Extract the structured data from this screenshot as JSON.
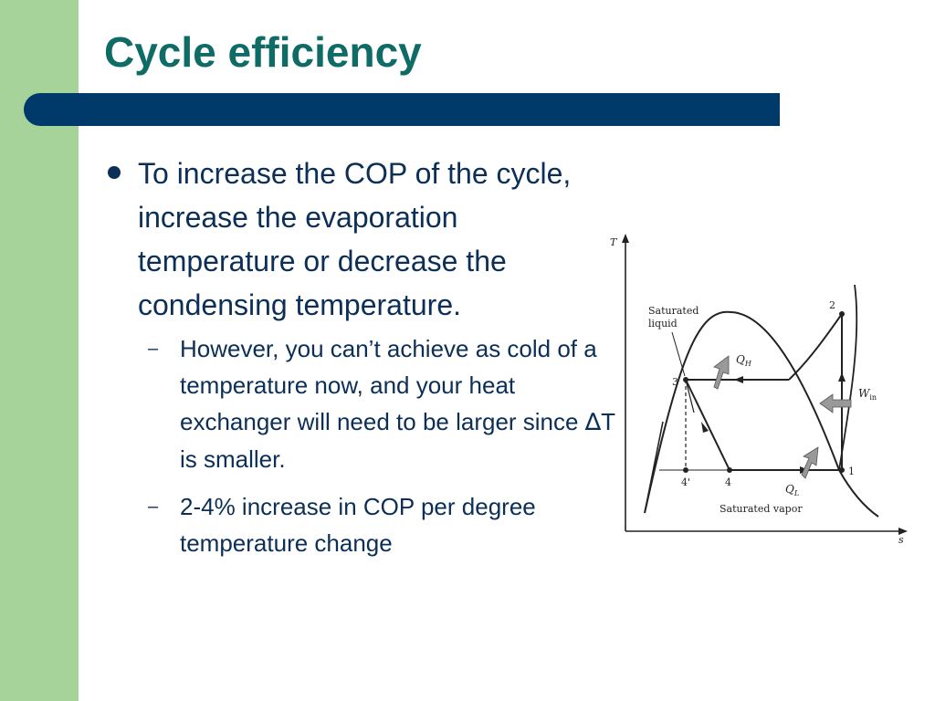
{
  "slide": {
    "title": "Cycle efficiency",
    "bullet_main": "To increase the COP of the cycle, increase the evaporation temperature or decrease the condensing temperature.",
    "sub_bullets": [
      {
        "text_pre": "However, you can’t achieve as cold of a temperature now, and your heat exchanger will need to be larger since ",
        "delta": "∆",
        "text_post": "T is smaller."
      },
      {
        "text": "2-4% increase in COP per degree temperature change"
      }
    ]
  },
  "diagram": {
    "axis_y": "T",
    "axis_x": "s",
    "saturated_liquid_line1": "Saturated",
    "saturated_liquid_line2": "liquid",
    "saturated_vapor": "Saturated vapor",
    "point_1": "1",
    "point_2": "2",
    "point_3": "3",
    "point_4": "4",
    "point_4p": "4'",
    "q_h": "Q",
    "q_h_sub": "H",
    "q_l": "Q",
    "q_l_sub": "L",
    "w_in": "W",
    "w_in_sub": "in"
  }
}
